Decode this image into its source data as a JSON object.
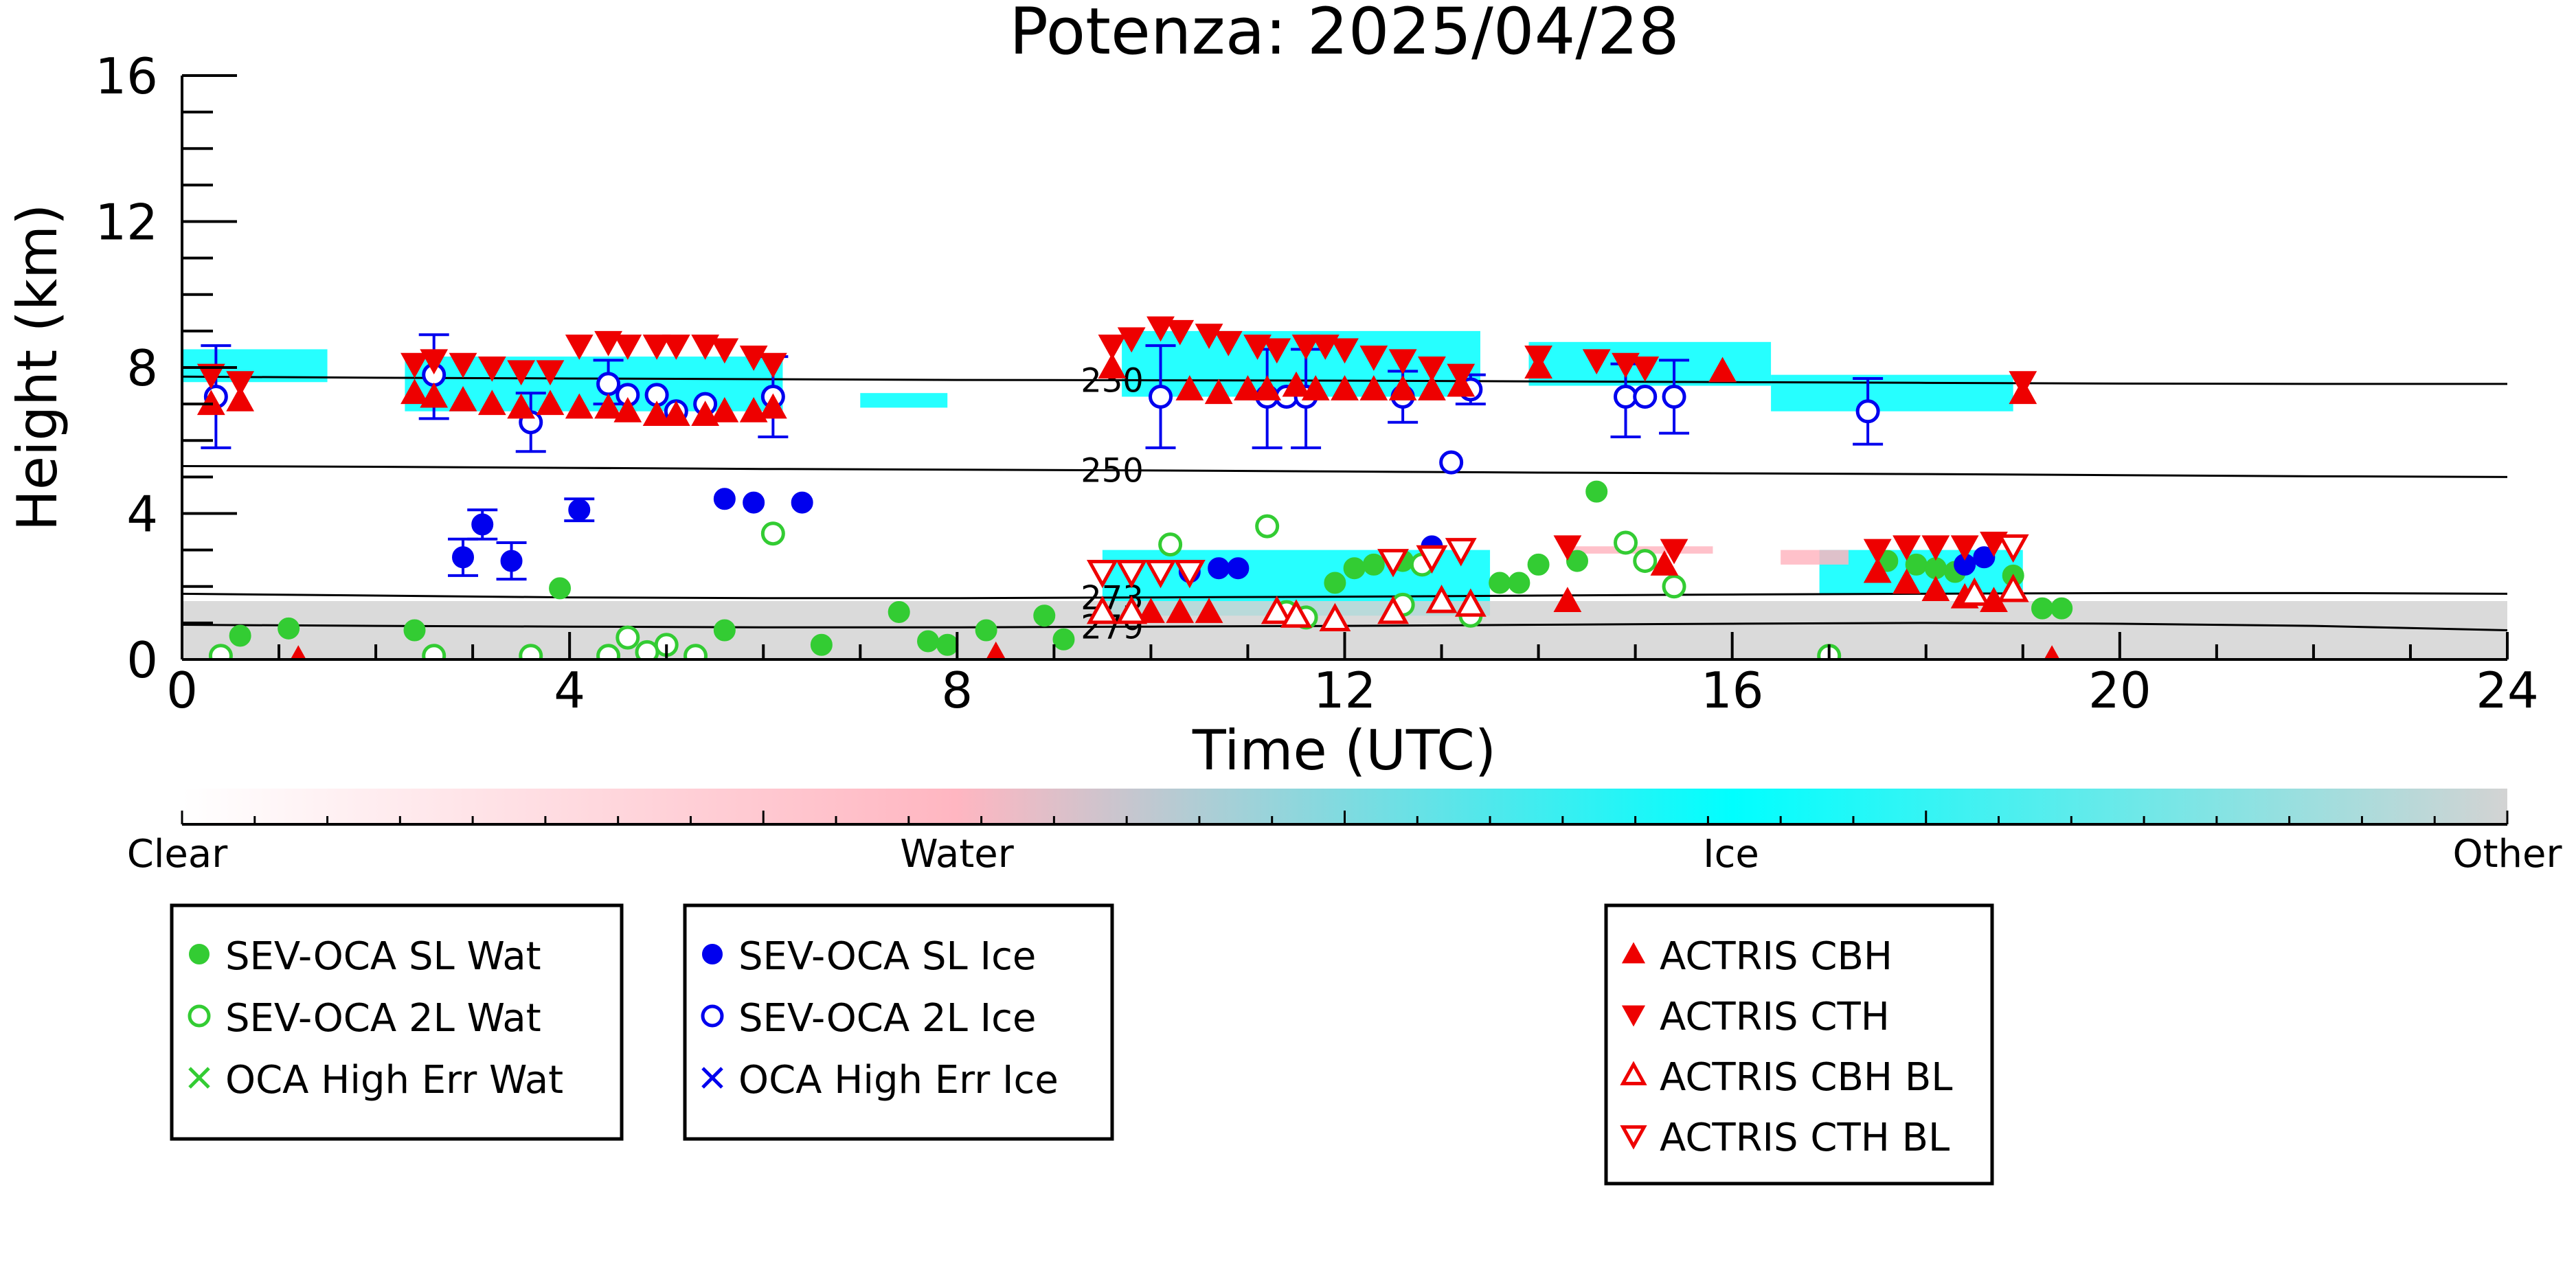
{
  "chart_data": {
    "type": "scatter",
    "title": "Potenza: 2025/04/28",
    "xlabel": "Time (UTC)",
    "ylabel": "Height (km)",
    "xlim": [
      0,
      24
    ],
    "ylim": [
      0,
      16
    ],
    "xticks": [
      0,
      4,
      8,
      12,
      16,
      20,
      24
    ],
    "yticks": [
      0,
      4,
      8,
      12,
      16
    ],
    "grid": false,
    "background_mask": [
      {
        "class": "Ice",
        "x0": 0.0,
        "x1": 1.5,
        "y0": 7.6,
        "y1": 8.5
      },
      {
        "class": "Ice",
        "x0": 2.3,
        "x1": 6.2,
        "y0": 6.8,
        "y1": 8.3
      },
      {
        "class": "Ice",
        "x0": 7.0,
        "x1": 7.9,
        "y0": 6.9,
        "y1": 7.3
      },
      {
        "class": "Ice",
        "x0": 9.7,
        "x1": 13.4,
        "y0": 7.2,
        "y1": 9.0
      },
      {
        "class": "Ice",
        "x0": 13.9,
        "x1": 16.4,
        "y0": 7.5,
        "y1": 8.7
      },
      {
        "class": "Ice",
        "x0": 16.4,
        "x1": 18.9,
        "y0": 6.8,
        "y1": 7.8
      },
      {
        "class": "Ice",
        "x0": 9.5,
        "x1": 13.5,
        "y0": 1.2,
        "y1": 3.0
      },
      {
        "class": "Ice",
        "x0": 16.9,
        "x1": 19.0,
        "y0": 1.8,
        "y1": 3.0
      },
      {
        "class": "Water",
        "x0": 16.5,
        "x1": 17.2,
        "y0": 2.6,
        "y1": 3.0
      },
      {
        "class": "Water",
        "x0": 14.3,
        "x1": 15.8,
        "y0": 2.9,
        "y1": 3.1
      },
      {
        "class": "Other",
        "x0": 0.0,
        "x1": 24.0,
        "y0": 0.0,
        "y1": 1.6
      }
    ],
    "contours": [
      {
        "label": "230",
        "label_x": 9.6,
        "x": [
          0,
          2,
          4,
          6,
          8,
          10,
          12,
          14,
          16,
          18,
          20,
          22,
          24
        ],
        "y": [
          7.75,
          7.72,
          7.7,
          7.68,
          7.66,
          7.65,
          7.64,
          7.62,
          7.6,
          7.58,
          7.56,
          7.55,
          7.55
        ]
      },
      {
        "label": "250",
        "label_x": 9.6,
        "x": [
          0,
          2,
          4,
          6,
          8,
          10,
          12,
          14,
          16,
          18,
          20,
          22,
          24
        ],
        "y": [
          5.3,
          5.28,
          5.25,
          5.22,
          5.2,
          5.18,
          5.15,
          5.12,
          5.1,
          5.08,
          5.05,
          5.02,
          5.0
        ]
      },
      {
        "label": "273",
        "label_x": 9.6,
        "x": [
          0,
          2,
          4,
          6,
          8,
          10,
          12,
          14,
          16,
          18,
          20,
          22,
          24
        ],
        "y": [
          1.8,
          1.75,
          1.7,
          1.68,
          1.68,
          1.7,
          1.72,
          1.75,
          1.78,
          1.8,
          1.82,
          1.82,
          1.8
        ]
      },
      {
        "label": "279",
        "label_x": 9.6,
        "x": [
          0,
          2,
          4,
          6,
          8,
          10,
          12,
          14,
          16,
          18,
          20,
          22,
          24
        ],
        "y": [
          0.95,
          0.92,
          0.9,
          0.88,
          0.88,
          0.9,
          0.92,
          0.95,
          0.98,
          1.0,
          0.98,
          0.92,
          0.8
        ]
      }
    ],
    "series": [
      {
        "name": "SEV-OCA SL Wat",
        "marker": "filled-circle",
        "color": "#33cc33",
        "points": [
          [
            0.6,
            0.65
          ],
          [
            1.1,
            0.85
          ],
          [
            2.4,
            0.8
          ],
          [
            3.9,
            1.95
          ],
          [
            5.6,
            0.8
          ],
          [
            6.6,
            0.4
          ],
          [
            7.4,
            1.3
          ],
          [
            7.7,
            0.5
          ],
          [
            7.9,
            0.4
          ],
          [
            8.3,
            0.8
          ],
          [
            8.9,
            1.2
          ],
          [
            9.1,
            0.55
          ],
          [
            11.9,
            2.1
          ],
          [
            12.1,
            2.5
          ],
          [
            12.3,
            2.6
          ],
          [
            12.6,
            2.7
          ],
          [
            13.6,
            2.1
          ],
          [
            13.8,
            2.1
          ],
          [
            14.0,
            2.6
          ],
          [
            14.4,
            2.7
          ],
          [
            14.6,
            4.6
          ],
          [
            17.6,
            2.7
          ],
          [
            17.9,
            2.6
          ],
          [
            18.1,
            2.5
          ],
          [
            18.3,
            2.4
          ],
          [
            18.9,
            2.3
          ],
          [
            19.2,
            1.4
          ],
          [
            19.4,
            1.4
          ]
        ]
      },
      {
        "name": "SEV-OCA 2L Wat",
        "marker": "open-circle",
        "color": "#33cc33",
        "points": [
          [
            0.4,
            0.1
          ],
          [
            2.6,
            0.1
          ],
          [
            3.6,
            0.1
          ],
          [
            4.4,
            0.1
          ],
          [
            4.6,
            0.6
          ],
          [
            4.8,
            0.2
          ],
          [
            5.0,
            0.4
          ],
          [
            5.3,
            0.1
          ],
          [
            6.1,
            3.45
          ],
          [
            10.2,
            3.15
          ],
          [
            11.2,
            3.65
          ],
          [
            11.4,
            1.3
          ],
          [
            11.6,
            1.15
          ],
          [
            12.6,
            1.5
          ],
          [
            12.8,
            2.6
          ],
          [
            13.3,
            1.2
          ],
          [
            14.9,
            3.2
          ],
          [
            15.1,
            2.7
          ],
          [
            15.4,
            2.0
          ],
          [
            17.0,
            0.1
          ]
        ]
      },
      {
        "name": "SEV-OCA SL Ice",
        "marker": "filled-circle",
        "color": "#0000ee",
        "points": [
          [
            2.9,
            2.8
          ],
          [
            3.1,
            3.7
          ],
          [
            3.4,
            2.7
          ],
          [
            4.1,
            4.1
          ],
          [
            5.6,
            4.4
          ],
          [
            5.9,
            4.3
          ],
          [
            6.4,
            4.3
          ],
          [
            10.4,
            2.4
          ],
          [
            10.7,
            2.5
          ],
          [
            10.9,
            2.5
          ],
          [
            12.9,
            3.1
          ],
          [
            18.4,
            2.6
          ],
          [
            18.6,
            2.8
          ]
        ]
      },
      {
        "name": "SEV-OCA 2L Ice",
        "marker": "open-circle",
        "color": "#0000ee",
        "points": [
          [
            0.35,
            7.2
          ],
          [
            2.6,
            7.8
          ],
          [
            3.6,
            6.5
          ],
          [
            4.4,
            7.55
          ],
          [
            4.6,
            7.25
          ],
          [
            4.9,
            7.25
          ],
          [
            5.1,
            6.8
          ],
          [
            5.4,
            7.0
          ],
          [
            6.1,
            7.2
          ],
          [
            10.1,
            7.2
          ],
          [
            11.2,
            7.2
          ],
          [
            11.4,
            7.2
          ],
          [
            11.6,
            7.2
          ],
          [
            12.6,
            7.2
          ],
          [
            13.1,
            5.4
          ],
          [
            13.3,
            7.4
          ],
          [
            14.9,
            7.2
          ],
          [
            15.1,
            7.2
          ],
          [
            15.4,
            7.2
          ],
          [
            17.4,
            6.8
          ]
        ]
      },
      {
        "name": "OCA High Err Wat",
        "marker": "x",
        "color": "#33cc33",
        "points": []
      },
      {
        "name": "OCA High Err Ice",
        "marker": "x",
        "color": "#0000ee",
        "points": []
      },
      {
        "name": "ACTRIS CBH",
        "marker": "filled-triangle-up",
        "color": "#ee0000",
        "points": [
          [
            0.3,
            7.0
          ],
          [
            0.6,
            7.1
          ],
          [
            1.2,
            0.0
          ],
          [
            2.4,
            7.3
          ],
          [
            2.6,
            7.2
          ],
          [
            2.9,
            7.1
          ],
          [
            3.2,
            7.0
          ],
          [
            3.5,
            6.9
          ],
          [
            3.8,
            7.0
          ],
          [
            4.1,
            6.9
          ],
          [
            4.4,
            6.9
          ],
          [
            4.6,
            6.8
          ],
          [
            4.9,
            6.7
          ],
          [
            5.1,
            6.7
          ],
          [
            5.4,
            6.7
          ],
          [
            5.6,
            6.8
          ],
          [
            5.9,
            6.8
          ],
          [
            6.1,
            6.9
          ],
          [
            8.4,
            0.1
          ],
          [
            9.6,
            8.0
          ],
          [
            10.0,
            1.3
          ],
          [
            10.3,
            1.3
          ],
          [
            10.6,
            1.3
          ],
          [
            10.4,
            7.4
          ],
          [
            10.7,
            7.3
          ],
          [
            11.0,
            7.4
          ],
          [
            11.2,
            7.4
          ],
          [
            11.5,
            7.5
          ],
          [
            11.7,
            7.4
          ],
          [
            12.0,
            7.4
          ],
          [
            12.3,
            7.4
          ],
          [
            12.6,
            7.4
          ],
          [
            12.9,
            7.4
          ],
          [
            13.2,
            7.5
          ],
          [
            14.0,
            8.0
          ],
          [
            14.3,
            1.6
          ],
          [
            15.3,
            2.6
          ],
          [
            15.9,
            7.9
          ],
          [
            17.5,
            2.4
          ],
          [
            17.8,
            2.1
          ],
          [
            18.1,
            1.9
          ],
          [
            18.4,
            1.7
          ],
          [
            18.7,
            1.6
          ],
          [
            19.0,
            7.3
          ],
          [
            19.3,
            0.0
          ]
        ]
      },
      {
        "name": "ACTRIS CTH",
        "marker": "filled-triangle-down",
        "color": "#ee0000",
        "points": [
          [
            0.3,
            7.8
          ],
          [
            0.6,
            7.6
          ],
          [
            2.4,
            8.1
          ],
          [
            2.6,
            8.2
          ],
          [
            2.9,
            8.1
          ],
          [
            3.2,
            8.0
          ],
          [
            3.5,
            7.9
          ],
          [
            3.8,
            7.9
          ],
          [
            4.1,
            8.6
          ],
          [
            4.4,
            8.7
          ],
          [
            4.6,
            8.6
          ],
          [
            4.9,
            8.6
          ],
          [
            5.1,
            8.6
          ],
          [
            5.4,
            8.6
          ],
          [
            5.6,
            8.5
          ],
          [
            5.9,
            8.3
          ],
          [
            6.1,
            8.1
          ],
          [
            9.6,
            8.6
          ],
          [
            9.8,
            8.8
          ],
          [
            10.1,
            9.1
          ],
          [
            10.3,
            9.0
          ],
          [
            10.6,
            8.9
          ],
          [
            10.8,
            8.7
          ],
          [
            11.1,
            8.6
          ],
          [
            11.3,
            8.5
          ],
          [
            11.6,
            8.6
          ],
          [
            11.8,
            8.6
          ],
          [
            12.0,
            8.5
          ],
          [
            12.3,
            8.3
          ],
          [
            12.6,
            8.2
          ],
          [
            12.9,
            8.0
          ],
          [
            13.2,
            7.8
          ],
          [
            14.0,
            8.3
          ],
          [
            14.3,
            3.1
          ],
          [
            14.6,
            8.2
          ],
          [
            14.9,
            8.1
          ],
          [
            15.1,
            8.0
          ],
          [
            15.4,
            3.0
          ],
          [
            17.5,
            3.0
          ],
          [
            17.8,
            3.1
          ],
          [
            18.1,
            3.1
          ],
          [
            18.4,
            3.1
          ],
          [
            18.7,
            3.2
          ],
          [
            19.0,
            7.6
          ]
        ]
      },
      {
        "name": "ACTRIS CBH BL",
        "marker": "open-triangle-up",
        "color": "#ee0000",
        "points": [
          [
            9.5,
            1.3
          ],
          [
            9.8,
            1.3
          ],
          [
            11.3,
            1.3
          ],
          [
            11.5,
            1.2
          ],
          [
            11.9,
            1.1
          ],
          [
            12.5,
            1.3
          ],
          [
            13.0,
            1.6
          ],
          [
            13.3,
            1.5
          ],
          [
            18.5,
            1.8
          ],
          [
            18.9,
            1.9
          ]
        ]
      },
      {
        "name": "ACTRIS CTH BL",
        "marker": "open-triangle-down",
        "color": "#ee0000",
        "points": [
          [
            9.5,
            2.4
          ],
          [
            9.8,
            2.4
          ],
          [
            10.1,
            2.4
          ],
          [
            10.4,
            2.4
          ],
          [
            12.5,
            2.7
          ],
          [
            12.9,
            2.8
          ],
          [
            13.2,
            3.0
          ],
          [
            18.9,
            3.1
          ]
        ]
      }
    ],
    "errorbars": [
      {
        "color": "#0000ee",
        "x": 0.35,
        "y": 7.2,
        "ylo": 5.8,
        "yhi": 8.6
      },
      {
        "color": "#0000ee",
        "x": 2.6,
        "y": 7.8,
        "ylo": 6.6,
        "yhi": 8.9
      },
      {
        "color": "#0000ee",
        "x": 3.6,
        "y": 6.5,
        "ylo": 5.7,
        "yhi": 7.3
      },
      {
        "color": "#0000ee",
        "x": 4.4,
        "y": 7.55,
        "ylo": 7.0,
        "yhi": 8.2
      },
      {
        "color": "#0000ee",
        "x": 6.1,
        "y": 7.2,
        "ylo": 6.1,
        "yhi": 8.3
      },
      {
        "color": "#0000ee",
        "x": 10.1,
        "y": 7.2,
        "ylo": 5.8,
        "yhi": 8.6
      },
      {
        "color": "#0000ee",
        "x": 11.2,
        "y": 7.2,
        "ylo": 5.8,
        "yhi": 8.5
      },
      {
        "color": "#0000ee",
        "x": 11.6,
        "y": 7.2,
        "ylo": 5.8,
        "yhi": 8.5
      },
      {
        "color": "#0000ee",
        "x": 12.6,
        "y": 7.2,
        "ylo": 6.5,
        "yhi": 7.9
      },
      {
        "color": "#0000ee",
        "x": 13.3,
        "y": 7.4,
        "ylo": 7.0,
        "yhi": 7.8
      },
      {
        "color": "#0000ee",
        "x": 14.9,
        "y": 7.2,
        "ylo": 6.1,
        "yhi": 8.1
      },
      {
        "color": "#0000ee",
        "x": 15.4,
        "y": 7.2,
        "ylo": 6.2,
        "yhi": 8.2
      },
      {
        "color": "#0000ee",
        "x": 17.4,
        "y": 6.8,
        "ylo": 5.9,
        "yhi": 7.7
      },
      {
        "color": "#0000ee",
        "x": 3.1,
        "y": 3.7,
        "ylo": 3.3,
        "yhi": 4.1
      },
      {
        "color": "#0000ee",
        "x": 2.9,
        "y": 2.8,
        "ylo": 2.3,
        "yhi": 3.3
      },
      {
        "color": "#0000ee",
        "x": 4.1,
        "y": 4.1,
        "ylo": 3.8,
        "yhi": 4.4
      },
      {
        "color": "#0000ee",
        "x": 3.4,
        "y": 2.7,
        "ylo": 2.2,
        "yhi": 3.2
      }
    ],
    "colorbar": {
      "labels": [
        "Clear",
        "Water",
        "Ice",
        "Other"
      ],
      "colors": [
        "#ffffff",
        "#ffb6c1",
        "#00ffff",
        "#d3d3d3"
      ]
    },
    "legends": [
      {
        "entries": [
          {
            "label": "SEV-OCA SL Wat",
            "marker": "filled-circle",
            "color": "#33cc33"
          },
          {
            "label": "SEV-OCA 2L Wat",
            "marker": "open-circle",
            "color": "#33cc33"
          },
          {
            "label": "OCA High Err Wat",
            "marker": "x",
            "color": "#33cc33"
          }
        ]
      },
      {
        "entries": [
          {
            "label": "SEV-OCA SL Ice",
            "marker": "filled-circle",
            "color": "#0000ee"
          },
          {
            "label": "SEV-OCA 2L Ice",
            "marker": "open-circle",
            "color": "#0000ee"
          },
          {
            "label": "OCA High Err Ice",
            "marker": "x",
            "color": "#0000ee"
          }
        ]
      },
      {
        "entries": [
          {
            "label": "ACTRIS CBH",
            "marker": "filled-triangle-up",
            "color": "#ee0000"
          },
          {
            "label": "ACTRIS CTH",
            "marker": "filled-triangle-down",
            "color": "#ee0000"
          },
          {
            "label": "ACTRIS CBH BL",
            "marker": "open-triangle-up",
            "color": "#ee0000"
          },
          {
            "label": "ACTRIS CTH BL",
            "marker": "open-triangle-down",
            "color": "#ee0000"
          }
        ]
      }
    ]
  }
}
